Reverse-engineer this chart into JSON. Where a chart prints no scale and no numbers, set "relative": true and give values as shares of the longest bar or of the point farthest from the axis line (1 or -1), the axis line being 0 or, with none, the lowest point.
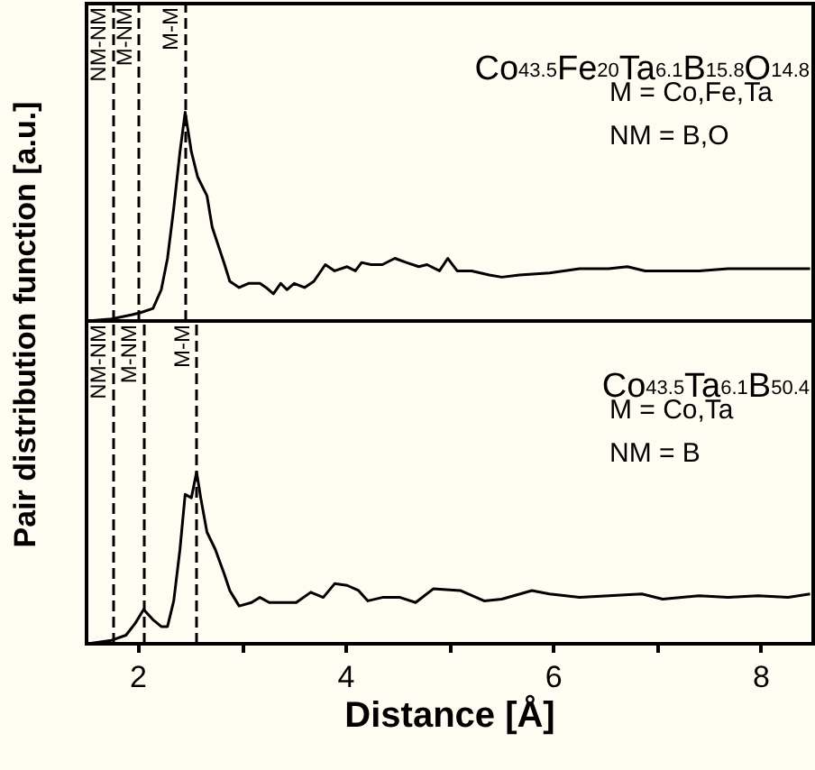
{
  "chart_data": [
    {
      "type": "line",
      "relative": true,
      "ylabel": "Pair distribution function [a.u.]",
      "color": "#000000",
      "marker": "none",
      "tick_labels": false,
      "xlim": [
        1.5,
        8.5
      ],
      "annotations": [
        "Co$_{43.5}$Fe$_{20}$Ta$_{6.1}$B$_{15.8}$O$_{14.8}$",
        "M = Co,Fe,Ta",
        "NM = B,O"
      ],
      "ref_lines": [
        {
          "axis": "x",
          "value": 1.75,
          "label": "NM-NM",
          "line_style": "dashed",
          "color": "#000000"
        },
        {
          "axis": "x",
          "value": 2.0,
          "label": "M-NM",
          "line_style": "dashed",
          "color": "#000000"
        },
        {
          "axis": "x",
          "value": 2.45,
          "label": "M-M",
          "line_style": "dashed",
          "color": "#000000"
        }
      ],
      "x": [
        1.51,
        1.74,
        1.94,
        2.02,
        2.14,
        2.22,
        2.28,
        2.34,
        2.4,
        2.45,
        2.51,
        2.57,
        2.66,
        2.71,
        2.77,
        2.83,
        2.88,
        2.97,
        3.06,
        3.17,
        3.23,
        3.3,
        3.37,
        3.43,
        3.5,
        3.6,
        3.69,
        3.8,
        3.89,
        4.01,
        4.09,
        4.15,
        4.24,
        4.35,
        4.47,
        4.58,
        4.7,
        4.78,
        4.9,
        4.98,
        5.07,
        5.21,
        5.38,
        5.5,
        5.67,
        5.96,
        6.25,
        6.53,
        6.71,
        6.88,
        7.11,
        7.4,
        7.68,
        7.97,
        8.26,
        8.47
      ],
      "values": [
        0,
        0.01,
        0.03,
        0.04,
        0.06,
        0.15,
        0.3,
        0.54,
        0.81,
        1,
        0.81,
        0.69,
        0.6,
        0.45,
        0.36,
        0.27,
        0.19,
        0.16,
        0.18,
        0.18,
        0.16,
        0.13,
        0.18,
        0.15,
        0.18,
        0.16,
        0.19,
        0.27,
        0.24,
        0.26,
        0.24,
        0.28,
        0.27,
        0.27,
        0.3,
        0.28,
        0.26,
        0.27,
        0.24,
        0.3,
        0.24,
        0.24,
        0.22,
        0.21,
        0.22,
        0.23,
        0.25,
        0.25,
        0.26,
        0.24,
        0.24,
        0.24,
        0.25,
        0.25,
        0.25,
        0.25
      ]
    },
    {
      "type": "line",
      "relative": true,
      "xlabel": "Distance [Å]",
      "color": "#000000",
      "marker": "none",
      "tick_labels": "x",
      "xlim": [
        1.5,
        8.5
      ],
      "xticks": [
        2,
        {
          "value": 3,
          "label": null
        },
        4,
        {
          "value": 5,
          "label": null
        },
        6,
        {
          "value": 7,
          "label": null
        },
        8
      ],
      "annotations": [
        "Co$_{43.5}$Ta$_{6.1}$B$_{50.4}$",
        "M = Co,Ta",
        "NM = B"
      ],
      "ref_lines": [
        {
          "axis": "x",
          "value": 1.75,
          "label": "NM-NM",
          "line_style": "dashed",
          "color": "#000000"
        },
        {
          "axis": "x",
          "value": 2.05,
          "label": "M-NM",
          "line_style": "dashed",
          "color": "#000000"
        },
        {
          "axis": "x",
          "value": 2.56,
          "label": "M-M",
          "line_style": "dashed",
          "color": "#000000"
        }
      ],
      "x": [
        1.51,
        1.74,
        1.88,
        1.97,
        2.05,
        2.14,
        2.22,
        2.28,
        2.34,
        2.4,
        2.45,
        2.51,
        2.56,
        2.6,
        2.66,
        2.74,
        2.83,
        2.88,
        2.97,
        3.09,
        3.17,
        3.26,
        3.37,
        3.52,
        3.66,
        3.78,
        3.89,
        4.01,
        4.12,
        4.21,
        4.35,
        4.52,
        4.67,
        4.84,
        5.1,
        5.33,
        5.5,
        5.79,
        5.96,
        6.25,
        6.53,
        6.85,
        7.05,
        7.4,
        7.68,
        7.97,
        8.26,
        8.47
      ],
      "values": [
        0,
        0.02,
        0.05,
        0.12,
        0.2,
        0.14,
        0.1,
        0.1,
        0.25,
        0.55,
        0.87,
        0.85,
        1,
        0.85,
        0.65,
        0.55,
        0.4,
        0.31,
        0.22,
        0.24,
        0.27,
        0.24,
        0.24,
        0.24,
        0.3,
        0.27,
        0.35,
        0.34,
        0.31,
        0.25,
        0.27,
        0.27,
        0.24,
        0.32,
        0.31,
        0.25,
        0.26,
        0.31,
        0.29,
        0.27,
        0.28,
        0.29,
        0.26,
        0.28,
        0.27,
        0.28,
        0.27,
        0.29
      ]
    }
  ]
}
